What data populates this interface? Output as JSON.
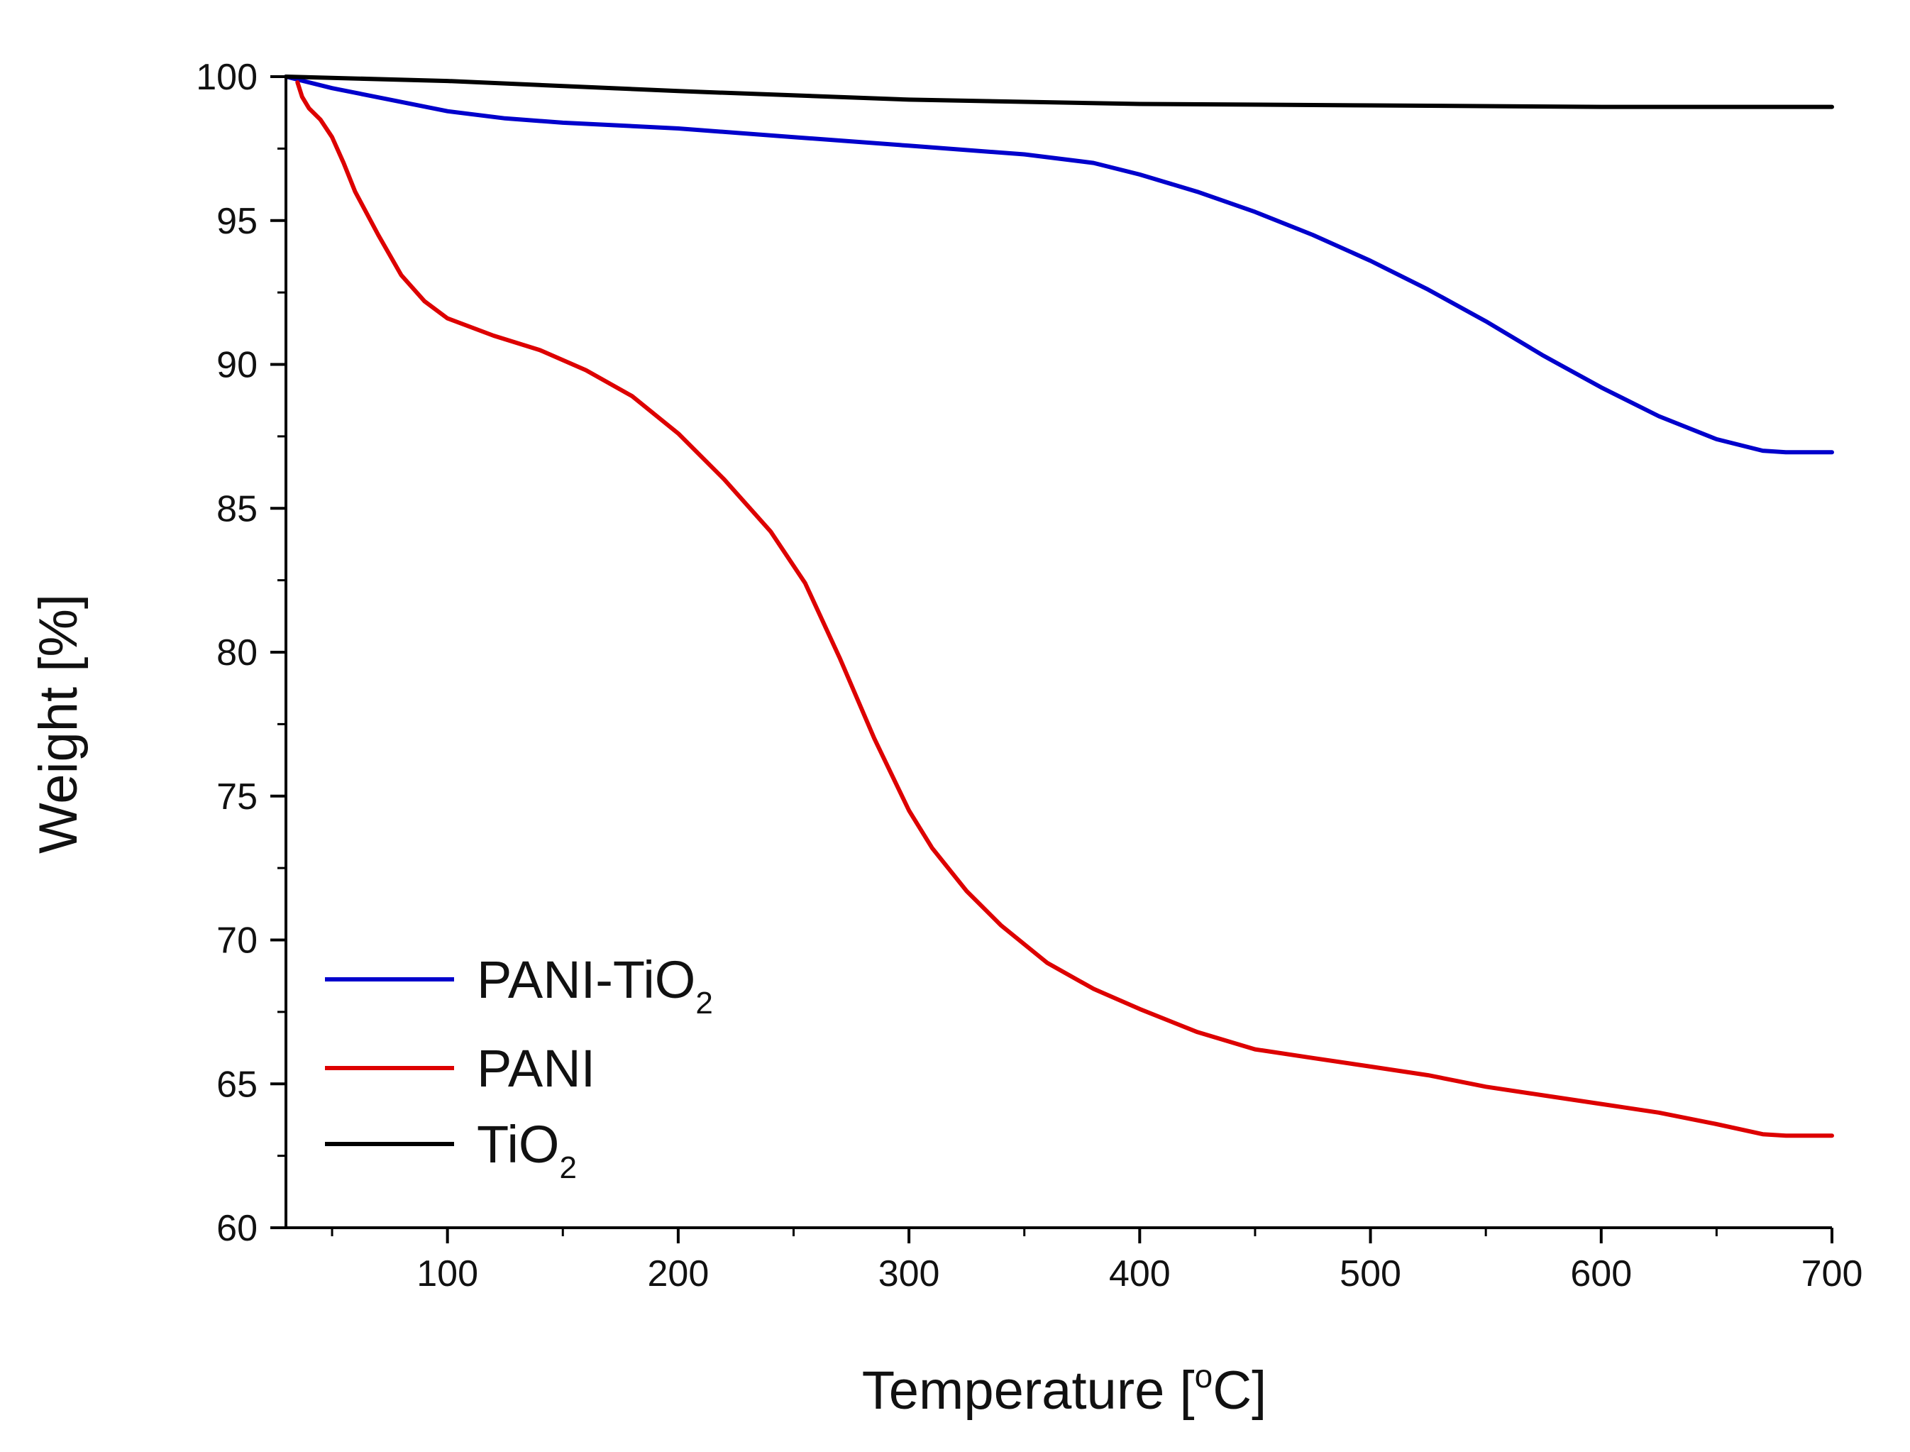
{
  "chart_data": {
    "type": "line",
    "title": "",
    "xlabel": "Temperature [",
    "xlabel_sup": "o",
    "xlabel_tail": "C]",
    "ylabel": "Weight [%]",
    "xlim": [
      30,
      700
    ],
    "ylim": [
      60,
      100
    ],
    "xticks": [
      100,
      200,
      300,
      400,
      500,
      600,
      700
    ],
    "yticks": [
      60,
      65,
      70,
      75,
      80,
      85,
      90,
      95,
      100
    ],
    "grid": false,
    "legend_position": "bottom-left",
    "series": [
      {
        "name": "PANI-TiO",
        "name_sub": "2",
        "color": "#0000cc",
        "x": [
          30,
          50,
          75,
          100,
          125,
          150,
          175,
          200,
          250,
          300,
          350,
          380,
          400,
          425,
          450,
          475,
          500,
          525,
          550,
          575,
          600,
          625,
          650,
          670,
          680,
          700
        ],
        "y": [
          100,
          99.6,
          99.2,
          98.8,
          98.55,
          98.4,
          98.3,
          98.2,
          97.9,
          97.6,
          97.3,
          97.0,
          96.6,
          96.0,
          95.3,
          94.5,
          93.6,
          92.6,
          91.5,
          90.3,
          89.2,
          88.2,
          87.4,
          87.0,
          86.95,
          86.95
        ]
      },
      {
        "name": "PANI",
        "name_sub": "",
        "color": "#dd0000",
        "x": [
          35,
          37,
          40,
          45,
          50,
          55,
          60,
          70,
          80,
          90,
          100,
          120,
          140,
          160,
          180,
          200,
          220,
          240,
          255,
          270,
          285,
          300,
          310,
          325,
          340,
          360,
          380,
          400,
          425,
          450,
          475,
          500,
          525,
          550,
          575,
          600,
          625,
          650,
          670,
          680,
          700
        ],
        "y": [
          99.8,
          99.3,
          98.9,
          98.5,
          97.9,
          97.0,
          96.0,
          94.5,
          93.1,
          92.2,
          91.6,
          91.0,
          90.5,
          89.8,
          88.9,
          87.6,
          86.0,
          84.2,
          82.4,
          79.8,
          77.0,
          74.5,
          73.2,
          71.7,
          70.5,
          69.2,
          68.3,
          67.6,
          66.8,
          66.2,
          65.9,
          65.6,
          65.3,
          64.9,
          64.6,
          64.3,
          64.0,
          63.6,
          63.25,
          63.2,
          63.2
        ]
      },
      {
        "name": "TiO",
        "name_sub": "2",
        "color": "#000000",
        "x": [
          30,
          100,
          200,
          300,
          400,
          500,
          600,
          700
        ],
        "y": [
          100,
          99.85,
          99.5,
          99.2,
          99.05,
          99.0,
          98.95,
          98.95
        ]
      }
    ]
  }
}
